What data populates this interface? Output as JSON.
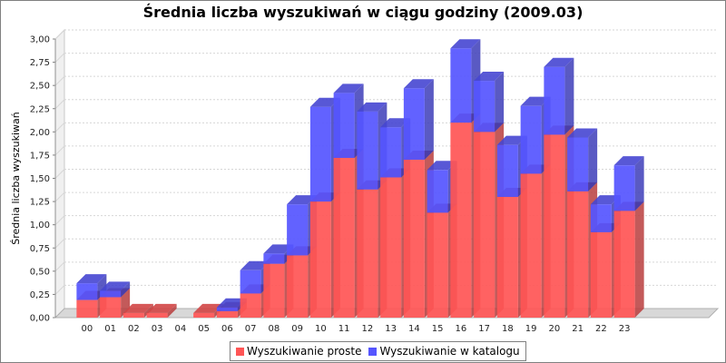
{
  "chart_data": {
    "type": "bar",
    "stacked": true,
    "three_d": true,
    "title": "Średnia liczba wyszukiwań w ciągu godziny (2009.03)",
    "ylabel": "Średnia liczba wyszukiwań",
    "xlabel": "",
    "ylim": [
      0,
      3.0
    ],
    "yticks": [
      "0,00",
      "0,25",
      "0,50",
      "0,75",
      "1,00",
      "1,25",
      "1,50",
      "1,75",
      "2,00",
      "2,25",
      "2,50",
      "2,75",
      "3,00"
    ],
    "categories": [
      "00",
      "01",
      "02",
      "03",
      "04",
      "05",
      "06",
      "07",
      "08",
      "09",
      "10",
      "11",
      "12",
      "13",
      "14",
      "15",
      "16",
      "17",
      "18",
      "19",
      "20",
      "21",
      "22",
      "23"
    ],
    "series": [
      {
        "name": "Wyszukiwanie proste",
        "color": "#ff5555",
        "values": [
          0.19,
          0.22,
          0.05,
          0.05,
          0.0,
          0.05,
          0.07,
          0.26,
          0.58,
          0.67,
          1.25,
          1.72,
          1.38,
          1.51,
          1.7,
          1.13,
          2.1,
          2.0,
          1.3,
          1.55,
          1.97,
          1.36,
          0.92,
          1.15
        ]
      },
      {
        "name": "Wyszukiwanie w katalogu",
        "color": "#5555ff",
        "values": [
          0.18,
          0.07,
          0.0,
          0.0,
          0.0,
          0.0,
          0.04,
          0.25,
          0.11,
          0.55,
          1.02,
          0.7,
          0.84,
          0.54,
          0.77,
          0.46,
          0.8,
          0.55,
          0.56,
          0.73,
          0.73,
          0.58,
          0.3,
          0.49
        ]
      }
    ],
    "grid": true,
    "legend_position": "bottom"
  }
}
